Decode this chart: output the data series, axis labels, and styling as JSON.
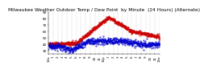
{
  "title": "Milwaukee Weather Outdoor Temp / Dew Point  by Minute  (24 Hours) (Alternate)",
  "background_color": "#ffffff",
  "temp_color": "#cc0000",
  "dew_color": "#0000cc",
  "ylim": [
    25,
    90
  ],
  "xlim": [
    0,
    1440
  ],
  "yticks": [
    30,
    40,
    50,
    60,
    70,
    80,
    90
  ],
  "xticks": [
    0,
    60,
    120,
    180,
    240,
    300,
    360,
    420,
    480,
    540,
    600,
    660,
    720,
    780,
    840,
    900,
    960,
    1020,
    1080,
    1140,
    1200,
    1260,
    1320,
    1380,
    1440
  ],
  "xtick_labels": [
    "12a",
    "1",
    "2",
    "3",
    "4",
    "5",
    "6",
    "7",
    "8",
    "9",
    "10",
    "11",
    "12p",
    "1",
    "2",
    "3",
    "4",
    "5",
    "6",
    "7",
    "8",
    "9",
    "10",
    "11",
    "12a"
  ],
  "grid_color": "#bbbbbb",
  "title_fontsize": 4.2,
  "tick_fontsize": 3.0,
  "marker_size": 0.8
}
